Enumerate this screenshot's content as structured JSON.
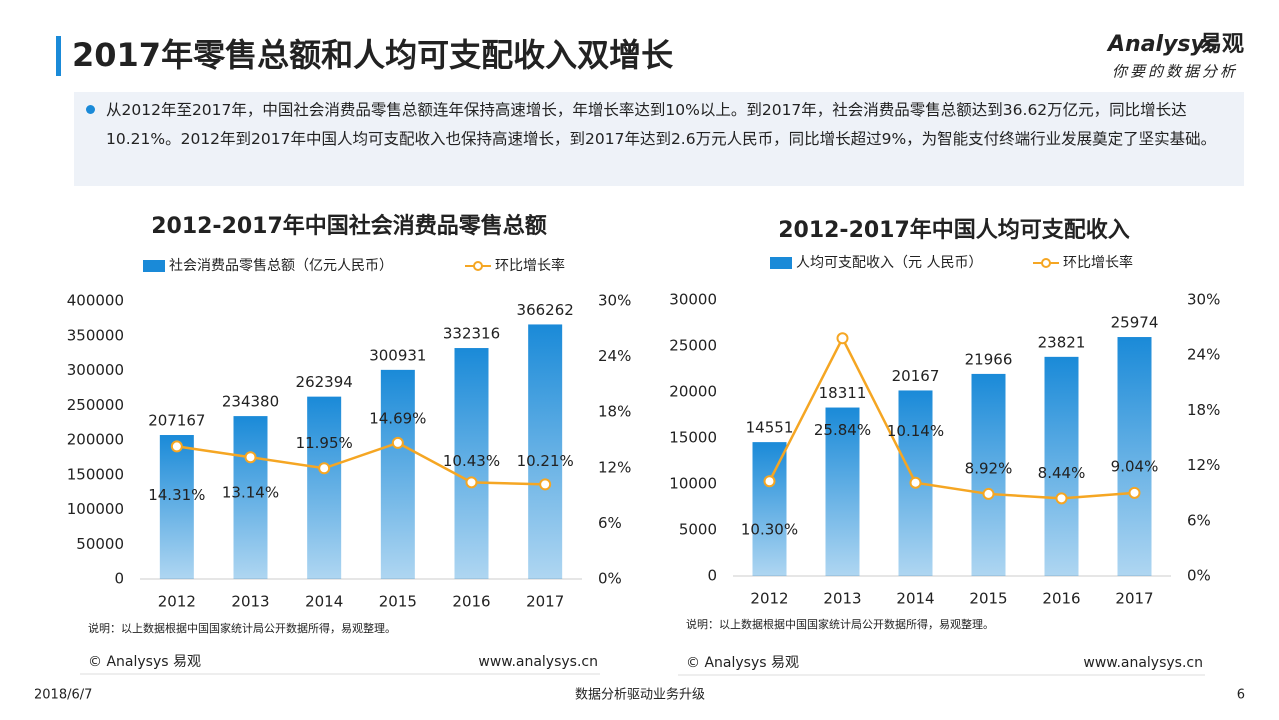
{
  "header": {
    "title": "2017年零售总额和人均可支配收入双增长",
    "bullet": "从2012年至2017年，中国社会消费品零售总额连年保持高速增长，年增长率达到10%以上。到2017年，社会消费品零售总额达到36.62万亿元，同比增长达10.21%。2012年到2017年中国人均可支配收入也保持高速增长，到2017年达到2.6万元人民币，同比增长超过9%，为智能支付终端行业发展奠定了坚实基础。"
  },
  "logo": {
    "name": "Analysys",
    "cn": "易观",
    "slogan": "你要的数据分析"
  },
  "footer": {
    "date": "2018/6/7",
    "slogan": "数据分析驱动业务升级",
    "page": "6"
  },
  "chart_data": [
    {
      "type": "bar",
      "title": "2012-2017年中国社会消费品零售总额",
      "categories": [
        "2012",
        "2013",
        "2014",
        "2015",
        "2016",
        "2017"
      ],
      "series": [
        {
          "name": "社会消费品零售总额（亿元人民币）",
          "color": "#1a8ad8",
          "values": [
            207167,
            234380,
            262394,
            300931,
            332316,
            366262
          ]
        },
        {
          "name": "环比增长率",
          "color": "#f5a623",
          "axis": "y2",
          "values": [
            14.31,
            13.14,
            11.95,
            14.69,
            10.43,
            10.21
          ],
          "value_labels": [
            "14.31%",
            "13.14%",
            "11.95%",
            "14.69%",
            "10.43%",
            "10.21%"
          ]
        }
      ],
      "ylim": [
        0,
        400000
      ],
      "yticks": [
        0,
        50000,
        100000,
        150000,
        200000,
        250000,
        300000,
        350000,
        400000
      ],
      "y2lim": [
        0,
        30
      ],
      "y2ticks": [
        {
          "value": 0,
          "label": "0%"
        },
        {
          "value": 6,
          "label": "6%"
        },
        {
          "value": 12,
          "label": "12%"
        },
        {
          "value": 18,
          "label": "18%"
        },
        {
          "value": 24,
          "label": "24%"
        },
        {
          "value": 30,
          "label": "30%"
        }
      ],
      "note": "说明：以上数据根据中国国家统计局公开数据所得，易观整理。",
      "copyright": "© Analysys 易观",
      "url": "www.analysys.cn"
    },
    {
      "type": "bar",
      "title": "2012-2017年中国人均可支配收入",
      "categories": [
        "2012",
        "2013",
        "2014",
        "2015",
        "2016",
        "2017"
      ],
      "series": [
        {
          "name": "人均可支配收入（元 人民币）",
          "color": "#1a8ad8",
          "values": [
            14551,
            18311,
            20167,
            21966,
            23821,
            25974
          ]
        },
        {
          "name": "环比增长率",
          "color": "#f5a623",
          "axis": "y2",
          "values": [
            10.3,
            25.84,
            10.14,
            8.92,
            8.44,
            9.04
          ],
          "value_labels": [
            "10.30%",
            "25.84%",
            "10.14%",
            "8.92%",
            "8.44%",
            "9.04%"
          ]
        }
      ],
      "ylim": [
        0,
        30000
      ],
      "yticks": [
        0,
        5000,
        10000,
        15000,
        20000,
        25000,
        30000
      ],
      "y2lim": [
        0,
        30
      ],
      "y2ticks": [
        {
          "value": 0,
          "label": "0%"
        },
        {
          "value": 6,
          "label": "6%"
        },
        {
          "value": 12,
          "label": "12%"
        },
        {
          "value": 18,
          "label": "18%"
        },
        {
          "value": 24,
          "label": "24%"
        },
        {
          "value": 30,
          "label": "30%"
        }
      ],
      "note": "说明：以上数据根据中国国家统计局公开数据所得，易观整理。",
      "copyright": "© Analysys 易观",
      "url": "www.analysys.cn"
    }
  ]
}
